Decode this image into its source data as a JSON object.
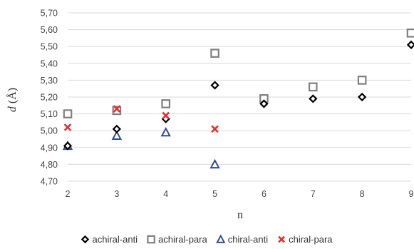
{
  "chart_data": {
    "type": "scatter",
    "xlabel": "n",
    "ylabel_italic": "d",
    "ylabel_unit": " (Å)",
    "xlim": [
      2,
      9
    ],
    "ylim": [
      4.7,
      5.7
    ],
    "x_ticks": [
      "2",
      "3",
      "4",
      "5",
      "6",
      "7",
      "8",
      "9"
    ],
    "y_ticks": [
      "4,70",
      "4,80",
      "4,90",
      "5,00",
      "5,10",
      "5,20",
      "5,30",
      "5,40",
      "5,50",
      "5,60",
      "5,70"
    ],
    "y_tick_values": [
      4.7,
      4.8,
      4.9,
      5.0,
      5.1,
      5.2,
      5.3,
      5.4,
      5.5,
      5.6,
      5.7
    ],
    "grid": "horizontal",
    "legend_position": "bottom",
    "series": [
      {
        "name": "achiral-anti",
        "marker": "diamond",
        "color": "#000000",
        "points": [
          [
            2,
            4.91
          ],
          [
            3,
            5.01
          ],
          [
            4,
            5.07
          ],
          [
            5,
            5.27
          ],
          [
            6,
            5.16
          ],
          [
            7,
            5.19
          ],
          [
            8,
            5.2
          ],
          [
            9,
            5.51
          ]
        ]
      },
      {
        "name": "achiral-para",
        "marker": "square",
        "color": "#7f7f7f",
        "points": [
          [
            2,
            5.1
          ],
          [
            3,
            5.12
          ],
          [
            4,
            5.16
          ],
          [
            5,
            5.46
          ],
          [
            6,
            5.19
          ],
          [
            7,
            5.26
          ],
          [
            8,
            5.3
          ],
          [
            9,
            5.58
          ]
        ]
      },
      {
        "name": "chiral-anti",
        "marker": "triangle",
        "color": "#2e4d8c",
        "points": [
          [
            2,
            4.91
          ],
          [
            3,
            4.97
          ],
          [
            4,
            4.99
          ],
          [
            5,
            4.8
          ]
        ]
      },
      {
        "name": "chiral-para",
        "marker": "x",
        "color": "#e03030",
        "points": [
          [
            2,
            5.02
          ],
          [
            3,
            5.13
          ],
          [
            4,
            5.09
          ],
          [
            5,
            5.01
          ]
        ]
      }
    ]
  }
}
